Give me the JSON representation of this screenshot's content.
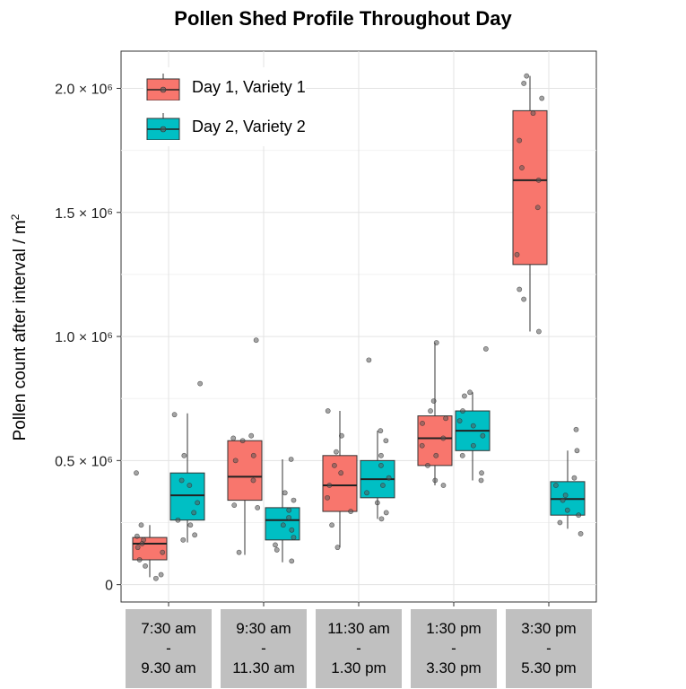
{
  "chart_data": {
    "type": "boxplot",
    "title": "Pollen Shed Profile Throughout Day",
    "ylabel": "Pollen count after interval / m²",
    "xlabel": "",
    "ylim": [
      -70000,
      2150000
    ],
    "yticks": [
      {
        "value": 0,
        "label": "0"
      },
      {
        "value": 500000,
        "label": "0.5 × 10⁶"
      },
      {
        "value": 1000000,
        "label": "1.0 × 10⁶"
      },
      {
        "value": 1500000,
        "label": "1.5 × 10⁶"
      },
      {
        "value": 2000000,
        "label": "2.0 × 10⁶"
      }
    ],
    "categories": [
      {
        "line1": "7:30 am",
        "line2": "-",
        "line3": "9.30 am"
      },
      {
        "line1": "9:30 am",
        "line2": "-",
        "line3": "11.30 am"
      },
      {
        "line1": "11:30 am",
        "line2": "-",
        "line3": "1.30 pm"
      },
      {
        "line1": "1:30 pm",
        "line2": "-",
        "line3": "3.30 pm"
      },
      {
        "line1": "3:30 pm",
        "line2": "-",
        "line3": "5.30 pm"
      }
    ],
    "series": [
      {
        "name": "Day 1, Variety 1",
        "color": "#f8766d",
        "boxes": [
          {
            "min": 30000,
            "q1": 100000,
            "median": 165000,
            "q3": 190000,
            "max": 240000,
            "points": [
              450000,
              240000,
              195000,
              180000,
              165000,
              150000,
              130000,
              100000,
              75000,
              40000,
              25000
            ]
          },
          {
            "min": 120000,
            "q1": 340000,
            "median": 435000,
            "q3": 580000,
            "max": 580000,
            "points": [
              985000,
              600000,
              590000,
              580000,
              520000,
              500000,
              420000,
              320000,
              310000,
              130000
            ]
          },
          {
            "min": 150000,
            "q1": 295000,
            "median": 400000,
            "q3": 520000,
            "max": 700000,
            "points": [
              700000,
              600000,
              535000,
              480000,
              450000,
              400000,
              350000,
              295000,
              240000,
              150000
            ]
          },
          {
            "min": 400000,
            "q1": 480000,
            "median": 590000,
            "q3": 680000,
            "max": 975000,
            "points": [
              975000,
              740000,
              700000,
              670000,
              650000,
              590000,
              560000,
              520000,
              480000,
              420000,
              400000
            ]
          },
          {
            "min": 1020000,
            "q1": 1290000,
            "median": 1630000,
            "q3": 1910000,
            "max": 2050000,
            "points": [
              2050000,
              2020000,
              1960000,
              1900000,
              1790000,
              1680000,
              1630000,
              1520000,
              1330000,
              1190000,
              1150000,
              1020000
            ]
          }
        ]
      },
      {
        "name": "Day 2, Variety 2",
        "color": "#00bfc4",
        "boxes": [
          {
            "min": 170000,
            "q1": 260000,
            "median": 360000,
            "q3": 450000,
            "max": 690000,
            "points": [
              810000,
              685000,
              520000,
              420000,
              400000,
              330000,
              290000,
              260000,
              240000,
              200000,
              180000
            ]
          },
          {
            "min": 90000,
            "q1": 180000,
            "median": 260000,
            "q3": 310000,
            "max": 505000,
            "points": [
              505000,
              370000,
              340000,
              300000,
              270000,
              240000,
              220000,
              190000,
              160000,
              140000,
              95000
            ]
          },
          {
            "min": 265000,
            "q1": 350000,
            "median": 425000,
            "q3": 500000,
            "max": 620000,
            "points": [
              905000,
              620000,
              580000,
              520000,
              480000,
              430000,
              400000,
              370000,
              330000,
              290000,
              265000
            ]
          },
          {
            "min": 420000,
            "q1": 540000,
            "median": 620000,
            "q3": 700000,
            "max": 775000,
            "points": [
              950000,
              775000,
              760000,
              700000,
              660000,
              640000,
              600000,
              560000,
              520000,
              450000,
              420000
            ]
          },
          {
            "min": 225000,
            "q1": 280000,
            "median": 345000,
            "q3": 415000,
            "max": 540000,
            "points": [
              625000,
              540000,
              430000,
              400000,
              360000,
              340000,
              300000,
              280000,
              250000,
              205000
            ]
          }
        ]
      }
    ],
    "legend_position": "top-left"
  }
}
